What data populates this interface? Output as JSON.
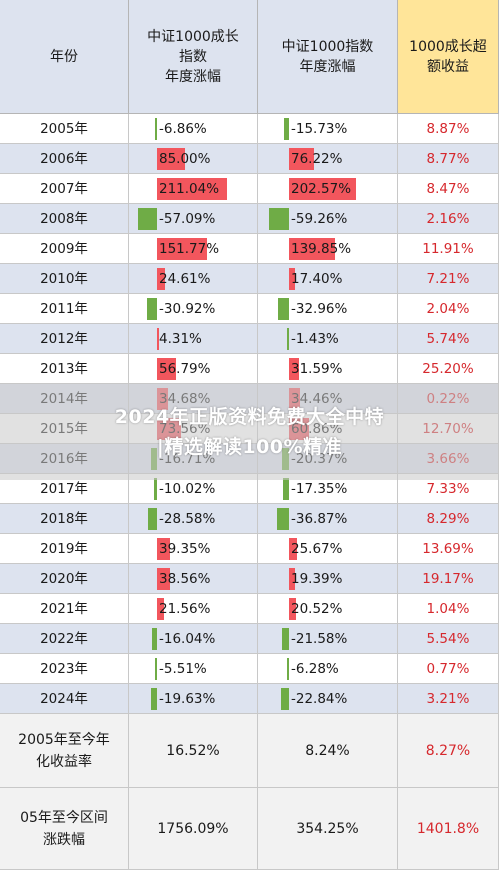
{
  "header": {
    "col_year": "年份",
    "col_csi1000": "中证1000成长\n指数\n年度涨幅",
    "col_csi1000_index": "中证1000指数\n年度涨幅",
    "col_excess": "1000成长超\n额收益"
  },
  "colors": {
    "header_bg_a": "#dde3ef",
    "header_bg_b": "#ffe599",
    "positive_bar": "#f2565d",
    "negative_bar": "#6fac46",
    "excess_text": "#d6282d",
    "alt_row": "#dde3ef"
  },
  "rows": [
    {
      "year": "2005年",
      "growth": -6.86,
      "growth_label": "-6.86%",
      "index": -15.73,
      "index_label": "-15.73%",
      "excess": "8.87%"
    },
    {
      "year": "2006年",
      "growth": 85.0,
      "growth_label": "85.00%",
      "index": 76.22,
      "index_label": "76.22%",
      "excess": "8.77%"
    },
    {
      "year": "2007年",
      "growth": 211.04,
      "growth_label": "211.04%",
      "index": 202.57,
      "index_label": "202.57%",
      "excess": "8.47%"
    },
    {
      "year": "2008年",
      "growth": -57.09,
      "growth_label": "-57.09%",
      "index": -59.26,
      "index_label": "-59.26%",
      "excess": "2.16%"
    },
    {
      "year": "2009年",
      "growth": 151.77,
      "growth_label": "151.77%",
      "index": 139.85,
      "index_label": "139.85%",
      "excess": "11.91%"
    },
    {
      "year": "2010年",
      "growth": 24.61,
      "growth_label": "24.61%",
      "index": 17.4,
      "index_label": "17.40%",
      "excess": "7.21%"
    },
    {
      "year": "2011年",
      "growth": -30.92,
      "growth_label": "-30.92%",
      "index": -32.96,
      "index_label": "-32.96%",
      "excess": "2.04%"
    },
    {
      "year": "2012年",
      "growth": 4.31,
      "growth_label": "4.31%",
      "index": -1.43,
      "index_label": "-1.43%",
      "excess": "5.74%"
    },
    {
      "year": "2013年",
      "growth": 56.79,
      "growth_label": "56.79%",
      "index": 31.59,
      "index_label": "31.59%",
      "excess": "25.20%"
    },
    {
      "year": "2014年",
      "growth": 34.68,
      "growth_label": "34.68%",
      "index": 34.46,
      "index_label": "34.46%",
      "excess": "0.22%"
    },
    {
      "year": "2015年",
      "growth": 73.56,
      "growth_label": "73.56%",
      "index": 60.86,
      "index_label": "60.86%",
      "excess": "12.70%"
    },
    {
      "year": "2016年",
      "growth": -16.71,
      "growth_label": "-16.71%",
      "index": -20.37,
      "index_label": "-20.37%",
      "excess": "3.66%"
    },
    {
      "year": "2017年",
      "growth": -10.02,
      "growth_label": "-10.02%",
      "index": -17.35,
      "index_label": "-17.35%",
      "excess": "7.33%"
    },
    {
      "year": "2018年",
      "growth": -28.58,
      "growth_label": "-28.58%",
      "index": -36.87,
      "index_label": "-36.87%",
      "excess": "8.29%"
    },
    {
      "year": "2019年",
      "growth": 39.35,
      "growth_label": "39.35%",
      "index": 25.67,
      "index_label": "25.67%",
      "excess": "13.69%"
    },
    {
      "year": "2020年",
      "growth": 38.56,
      "growth_label": "38.56%",
      "index": 19.39,
      "index_label": "19.39%",
      "excess": "19.17%"
    },
    {
      "year": "2021年",
      "growth": 21.56,
      "growth_label": "21.56%",
      "index": 20.52,
      "index_label": "20.52%",
      "excess": "1.04%"
    },
    {
      "year": "2022年",
      "growth": -16.04,
      "growth_label": "-16.04%",
      "index": -21.58,
      "index_label": "-21.58%",
      "excess": "5.54%"
    },
    {
      "year": "2023年",
      "growth": -5.51,
      "growth_label": "-5.51%",
      "index": -6.28,
      "index_label": "-6.28%",
      "excess": "0.77%"
    },
    {
      "year": "2024年",
      "growth": -19.63,
      "growth_label": "-19.63%",
      "index": -22.84,
      "index_label": "-22.84%",
      "excess": "3.21%"
    }
  ],
  "footer": [
    {
      "label": "2005年至今年\n化收益率",
      "growth": "16.52%",
      "index": "8.24%",
      "excess": "8.27%"
    },
    {
      "label": "05年至今区间\n涨跌幅",
      "growth": "1756.09%",
      "index": "354.25%",
      "excess": "1401.8%"
    }
  ],
  "watermark": {
    "line1": "2024年正版资料免费大全中特",
    "line2": "|精选解读100%精准"
  }
}
